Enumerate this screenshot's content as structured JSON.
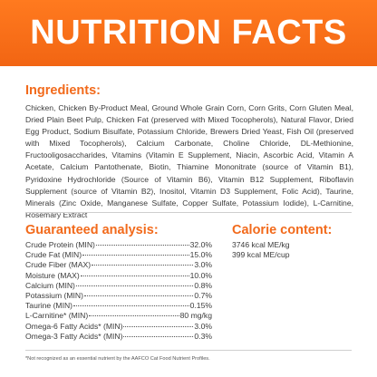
{
  "banner": {
    "title": "NUTRITION FACTS",
    "color": "#f26513"
  },
  "ingredients": {
    "heading": "Ingredients:",
    "text": "Chicken, Chicken By-Product Meal, Ground Whole Grain Corn, Corn Grits, Corn Gluten Meal, Dried Plain Beet Pulp, Chicken Fat (preserved with Mixed Tocopherols), Natural Flavor, Dried Egg Product, Sodium Bisulfate, Potassium Chloride, Brewers Dried Yeast, Fish Oil (preserved with Mixed Tocopherols), Calcium Carbonate, Choline Chloride, DL-Methionine, Fructooligosaccharides, Vitamins (Vitamin E Supplement, Niacin, Ascorbic Acid, Vitamin A Acetate, Calcium Pantothenate, Biotin, Thiamine Mononitrate (source of Vitamin B1), Pyridoxine Hydrochloride (Source of Vitamin B6), Vitamin B12 Supplement, Riboflavin Supplement (source of Vitamin B2), Inositol, Vitamin D3 Supplement, Folic Acid), Taurine, Minerals (Zinc Oxide, Manganese Sulfate, Copper Sulfate, Potassium Iodide), L-Carnitine, Rosemary Extract"
  },
  "guaranteed_analysis": {
    "heading": "Guaranteed analysis:",
    "rows": [
      {
        "label": "Crude Protein (MIN)",
        "value": "32.0%"
      },
      {
        "label": "Crude Fat (MIN)",
        "value": "15.0%"
      },
      {
        "label": "Crude Fiber (MAX)",
        "value": "3.0%"
      },
      {
        "label": "Moisture (MAX)",
        "value": "10.0%"
      },
      {
        "label": "Calcium (MIN)",
        "value": "0.8%"
      },
      {
        "label": "Potassium (MIN)",
        "value": "0.7%"
      },
      {
        "label": "Taurine (MIN)",
        "value": "0.15%"
      },
      {
        "label": "L-Carnitine* (MIN)",
        "value": "80 mg/kg"
      },
      {
        "label": "Omega-6 Fatty Acids* (MIN)",
        "value": "3.0%"
      },
      {
        "label": "Omega-3 Fatty Acids* (MIN)",
        "value": "0.3%"
      }
    ]
  },
  "calorie_content": {
    "heading": "Calorie content:",
    "lines": [
      "3746 kcal ME/kg",
      "399 kcal ME/cup"
    ]
  },
  "footnote": "*Not recognized as an essential nutrient by the AAFCO Cat Food Nutrient Profiles."
}
